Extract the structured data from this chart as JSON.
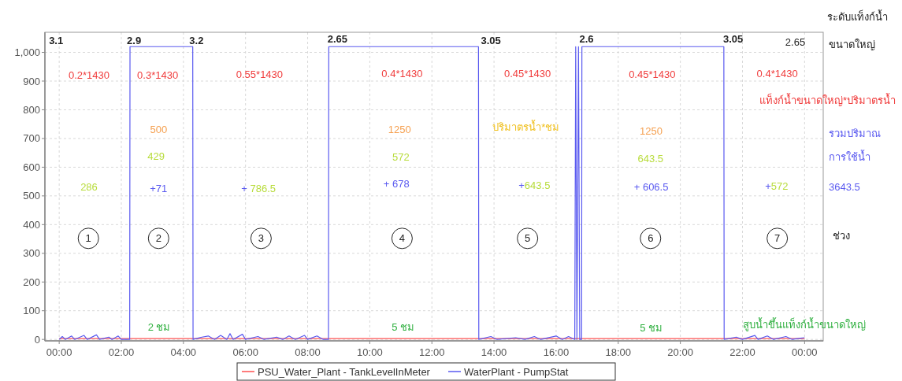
{
  "chart_data": {
    "type": "line",
    "xlim": [
      -0.46,
      24.6
    ],
    "ylim": [
      -5,
      1070
    ],
    "xticks": [
      {
        "value": 0,
        "label": "00:00"
      },
      {
        "value": 2,
        "label": "02:00"
      },
      {
        "value": 4,
        "label": "04:00"
      },
      {
        "value": 6,
        "label": "06:00"
      },
      {
        "value": 8,
        "label": "08:00"
      },
      {
        "value": 10,
        "label": "10:00"
      },
      {
        "value": 12,
        "label": "12:00"
      },
      {
        "value": 14,
        "label": "14:00"
      },
      {
        "value": 16,
        "label": "16:00"
      },
      {
        "value": 18,
        "label": "18:00"
      },
      {
        "value": 20,
        "label": "20:00"
      },
      {
        "value": 22,
        "label": "22:00"
      },
      {
        "value": 24,
        "label": "00:00"
      }
    ],
    "yticks": [
      0,
      100,
      200,
      300,
      400,
      500,
      600,
      700,
      800,
      900,
      {
        "value": 1000,
        "label": "1,000"
      }
    ],
    "grid": true,
    "legend": "bottom",
    "marker": "none",
    "line_style": "solid",
    "series": [
      {
        "name": "PSU_Water_Plant - TankLevelInMeter",
        "color": "#ff5050",
        "x": [
          0,
          24
        ],
        "values": [
          3,
          3
        ]
      },
      {
        "name": "WaterPlant - PumpStat",
        "color": "#5a5af0",
        "x": [
          0,
          0.1,
          0.2,
          0.4,
          0.5,
          0.8,
          0.9,
          1.2,
          1.3,
          1.6,
          1.7,
          1.9,
          2.0,
          2.27,
          2.28,
          4.3,
          4.31,
          4.6,
          4.8,
          5.0,
          5.2,
          5.4,
          5.5,
          5.6,
          5.9,
          6.0,
          6.4,
          6.6,
          7.0,
          7.2,
          7.4,
          7.6,
          7.9,
          8.0,
          8.3,
          8.5,
          8.67,
          8.68,
          13.5,
          13.51,
          13.9,
          14.1,
          14.7,
          15.0,
          15.3,
          15.5,
          16.0,
          16.2,
          16.4,
          16.6,
          16.63,
          16.67,
          16.72,
          16.76,
          16.82,
          16.83,
          21.4,
          21.41,
          21.8,
          22.0,
          22.4,
          22.5,
          22.8,
          23.0,
          23.4,
          23.6,
          24
        ],
        "values": [
          0,
          10,
          0,
          12,
          0,
          14,
          0,
          16,
          0,
          8,
          0,
          12,
          0,
          0,
          1020,
          1020,
          0,
          8,
          12,
          0,
          14,
          0,
          20,
          0,
          18,
          0,
          10,
          0,
          8,
          0,
          12,
          0,
          14,
          0,
          12,
          0,
          0,
          1020,
          1020,
          0,
          10,
          0,
          6,
          0,
          10,
          0,
          12,
          0,
          10,
          0,
          1020,
          0,
          1020,
          0,
          0,
          1020,
          1020,
          0,
          8,
          0,
          14,
          0,
          12,
          0,
          10,
          0,
          6
        ]
      }
    ],
    "annotations": [
      "3.1",
      "2.9",
      "3.2",
      "2.65",
      "3.05",
      "2.6",
      "3.05",
      "2.65",
      "0.2*1430",
      "0.3*1430",
      "0.55*1430",
      "0.4*1430",
      "0.45*1430",
      "0.45*1430",
      "0.4*1430",
      "500",
      "1250",
      "1250",
      "ปริมาตรน้ำ*ชม",
      "286",
      "429",
      "572",
      "643.5",
      "+71",
      "+ 786.5",
      "+ 678",
      "+643.5",
      "+ 606.5",
      "+572",
      "1",
      "2",
      "3",
      "4",
      "5",
      "6",
      "7",
      "2 ชม",
      "5 ชม",
      "5 ชม",
      "สูบน้ำขึ้นแท็งก์น้ำขนาดใหญ่",
      "ระดับแท็งก์น้ำ",
      "ขนาดใหญ่",
      "แท็งก์น้ำขนาดใหญ่*ปริมาตรน้ำ",
      "รวมปริมาณ",
      "การใช้น้ำ",
      "3643.5",
      "ช่วง"
    ]
  }
}
